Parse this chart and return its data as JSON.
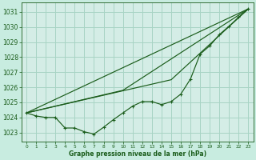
{
  "title": "Graphe pression niveau de la mer (hPa)",
  "background_color": "#c8ece0",
  "plot_bg_color": "#d4ede6",
  "grid_color": "#a8d4c4",
  "line_color": "#1a5c1a",
  "xlim": [
    -0.5,
    23.5
  ],
  "ylim": [
    1022.4,
    1031.6
  ],
  "yticks": [
    1023,
    1024,
    1025,
    1026,
    1027,
    1028,
    1029,
    1030,
    1031
  ],
  "xticks": [
    0,
    1,
    2,
    3,
    4,
    5,
    6,
    7,
    8,
    9,
    10,
    11,
    12,
    13,
    14,
    15,
    16,
    17,
    18,
    19,
    20,
    21,
    22,
    23
  ],
  "series_main": {
    "x": [
      0,
      1,
      2,
      3,
      4,
      5,
      6,
      7,
      8,
      9,
      10,
      11,
      12,
      13,
      14,
      15,
      16,
      17,
      18,
      19,
      20,
      21,
      22,
      23
    ],
    "y": [
      1024.3,
      1024.1,
      1024.0,
      1024.0,
      1023.3,
      1023.3,
      1023.05,
      1022.9,
      1023.35,
      1023.85,
      1024.3,
      1024.75,
      1025.05,
      1025.05,
      1024.85,
      1025.05,
      1025.55,
      1026.55,
      1028.2,
      1028.75,
      1029.5,
      1030.05,
      1030.65,
      1031.2
    ]
  },
  "series_line1": {
    "x": [
      0,
      23
    ],
    "y": [
      1024.3,
      1031.2
    ]
  },
  "series_line2": {
    "x": [
      0,
      10,
      23
    ],
    "y": [
      1024.3,
      1025.8,
      1031.2
    ]
  },
  "series_line3": {
    "x": [
      0,
      15,
      23
    ],
    "y": [
      1024.3,
      1026.5,
      1031.2
    ]
  }
}
